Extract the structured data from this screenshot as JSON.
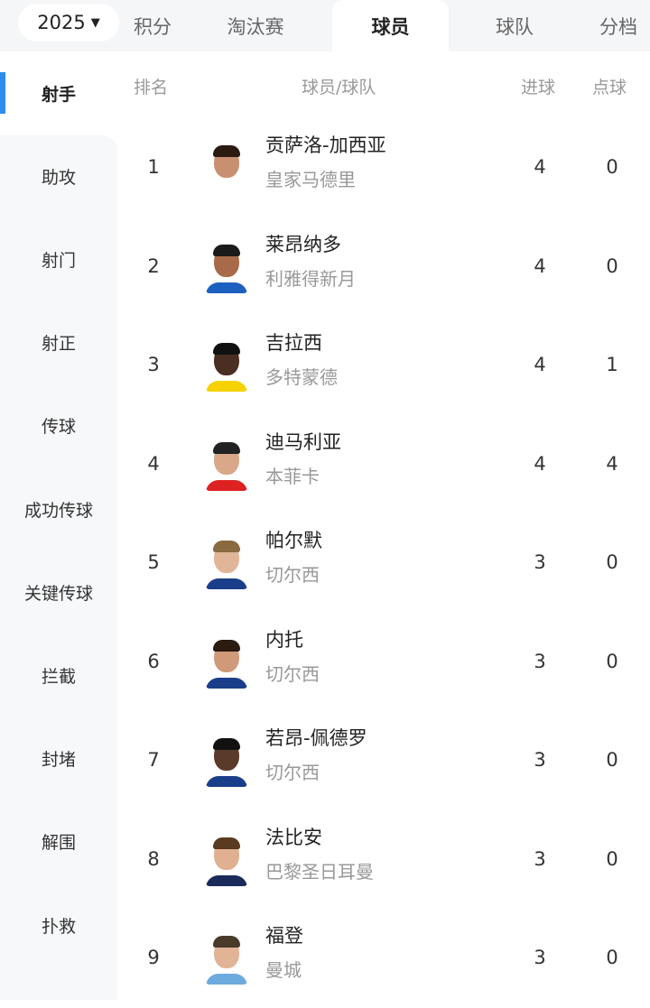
{
  "year_selector": {
    "value": "2025"
  },
  "tabs": [
    {
      "label": "积分"
    },
    {
      "label": "淘汰赛"
    },
    {
      "label": "球员",
      "active": true
    },
    {
      "label": "球队"
    },
    {
      "label": "分档"
    }
  ],
  "sidebar": {
    "items": [
      {
        "label": "射手",
        "active": true
      },
      {
        "label": "助攻"
      },
      {
        "label": "射门"
      },
      {
        "label": "射正"
      },
      {
        "label": "传球"
      },
      {
        "label": "成功传球"
      },
      {
        "label": "关键传球"
      },
      {
        "label": "拦截"
      },
      {
        "label": "封堵"
      },
      {
        "label": "解围"
      },
      {
        "label": "扑救"
      }
    ]
  },
  "table": {
    "headers": {
      "rank": "排名",
      "player_team": "球员/球队",
      "goals": "进球",
      "penalties": "点球"
    },
    "rows": [
      {
        "rank": "1",
        "player": "贡萨洛-加西亚",
        "team": "皇家马德里",
        "goals": "4",
        "penalties": "0"
      },
      {
        "rank": "2",
        "player": "莱昂纳多",
        "team": "利雅得新月",
        "goals": "4",
        "penalties": "0"
      },
      {
        "rank": "3",
        "player": "吉拉西",
        "team": "多特蒙德",
        "goals": "4",
        "penalties": "1"
      },
      {
        "rank": "4",
        "player": "迪马利亚",
        "team": "本菲卡",
        "goals": "4",
        "penalties": "4"
      },
      {
        "rank": "5",
        "player": "帕尔默",
        "team": "切尔西",
        "goals": "3",
        "penalties": "0"
      },
      {
        "rank": "6",
        "player": "内托",
        "team": "切尔西",
        "goals": "3",
        "penalties": "0"
      },
      {
        "rank": "7",
        "player": "若昂-佩德罗",
        "team": "切尔西",
        "goals": "3",
        "penalties": "0"
      },
      {
        "rank": "8",
        "player": "法比安",
        "team": "巴黎圣日耳曼",
        "goals": "3",
        "penalties": "0"
      },
      {
        "rank": "9",
        "player": "福登",
        "team": "曼城",
        "goals": "3",
        "penalties": "0"
      }
    ]
  },
  "colors": {
    "accent": "#2d8cf0",
    "sidebar_bg": "#f7f8fa",
    "topbar_bg": "#f5f6f8"
  }
}
